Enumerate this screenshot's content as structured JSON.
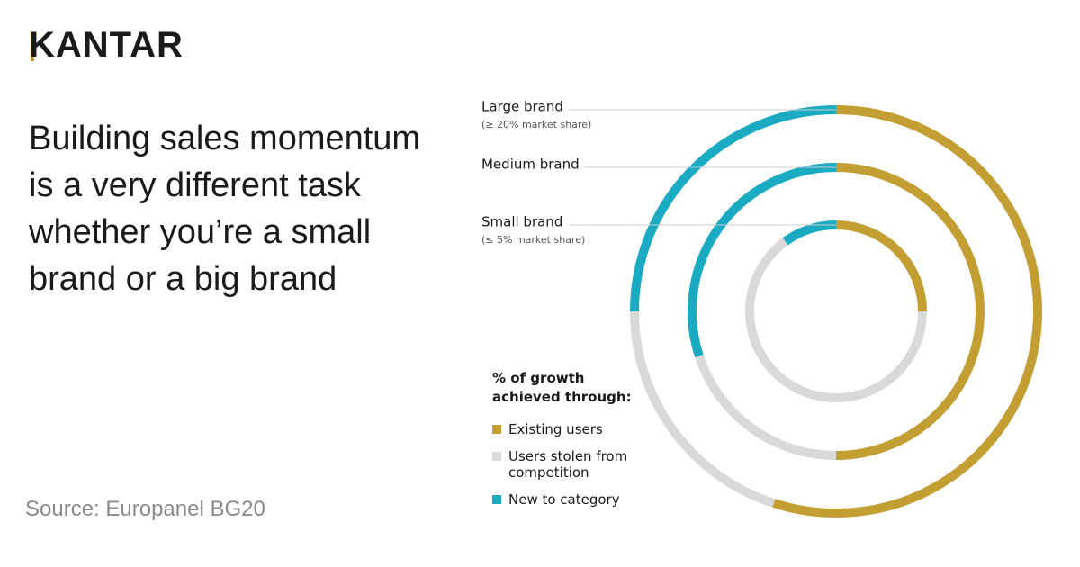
{
  "logo": "KANTAR",
  "chart_data": {
    "type": "donut",
    "title": "Building sales momentum is a very different task whether you’re a small brand or a big brand",
    "source": "Source: Europanel BG20",
    "legend_title": "% of growth achieved through:",
    "categories": [
      "Large brand",
      "Medium brand",
      "Small brand"
    ],
    "category_notes": [
      "(≥ 20% market share)",
      null,
      "(≤ 5% market share)"
    ],
    "series": [
      {
        "name": "Existing users",
        "color": "#c29e33",
        "values": [
          55,
          50,
          25
        ]
      },
      {
        "name": "Users stolen from competition",
        "color": "#d9d9d9",
        "values": [
          20,
          20,
          65
        ]
      },
      {
        "name": "New to category",
        "color": "#1aabc3",
        "values": [
          25,
          30,
          10
        ]
      }
    ]
  }
}
